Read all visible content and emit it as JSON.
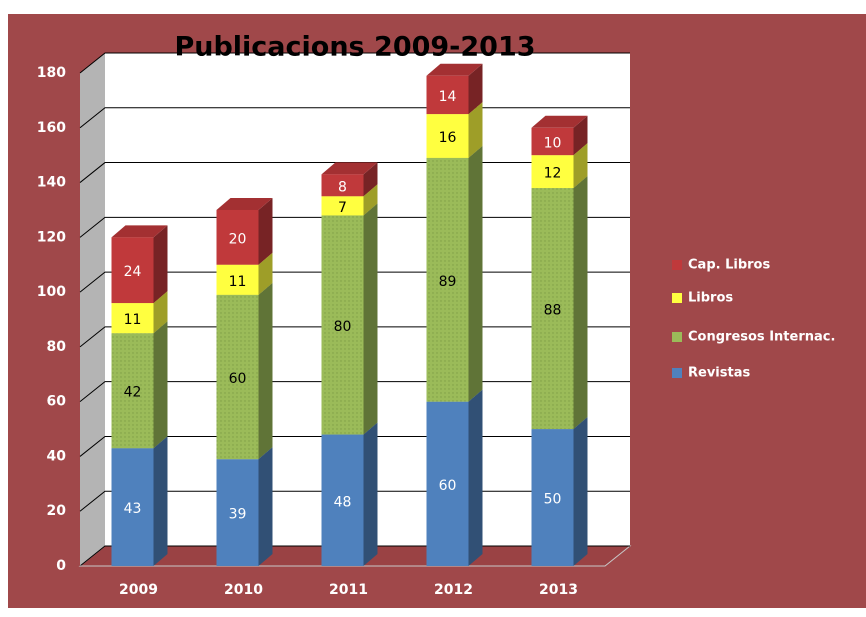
{
  "chart_data": {
    "type": "bar",
    "stacked": true,
    "title": "Publicacions 2009-2013",
    "categories": [
      "2009",
      "2010",
      "2011",
      "2012",
      "2013"
    ],
    "series": [
      {
        "name": "Revistas",
        "color": "#4f81bd",
        "values": [
          43,
          39,
          48,
          60,
          50
        ]
      },
      {
        "name": "Congresos Internac.",
        "color": "#9bbb59",
        "values": [
          42,
          60,
          80,
          89,
          88
        ]
      },
      {
        "name": "Libros",
        "color": "#ffff40",
        "values": [
          11,
          11,
          7,
          16,
          12
        ]
      },
      {
        "name": "Cap. Libros",
        "color": "#c0393b",
        "values": [
          24,
          20,
          8,
          14,
          10
        ]
      }
    ],
    "ylim": [
      0,
      180
    ],
    "yticks": [
      0,
      20,
      40,
      60,
      80,
      100,
      120,
      140,
      160,
      180
    ],
    "grid": true,
    "legend": "right"
  }
}
